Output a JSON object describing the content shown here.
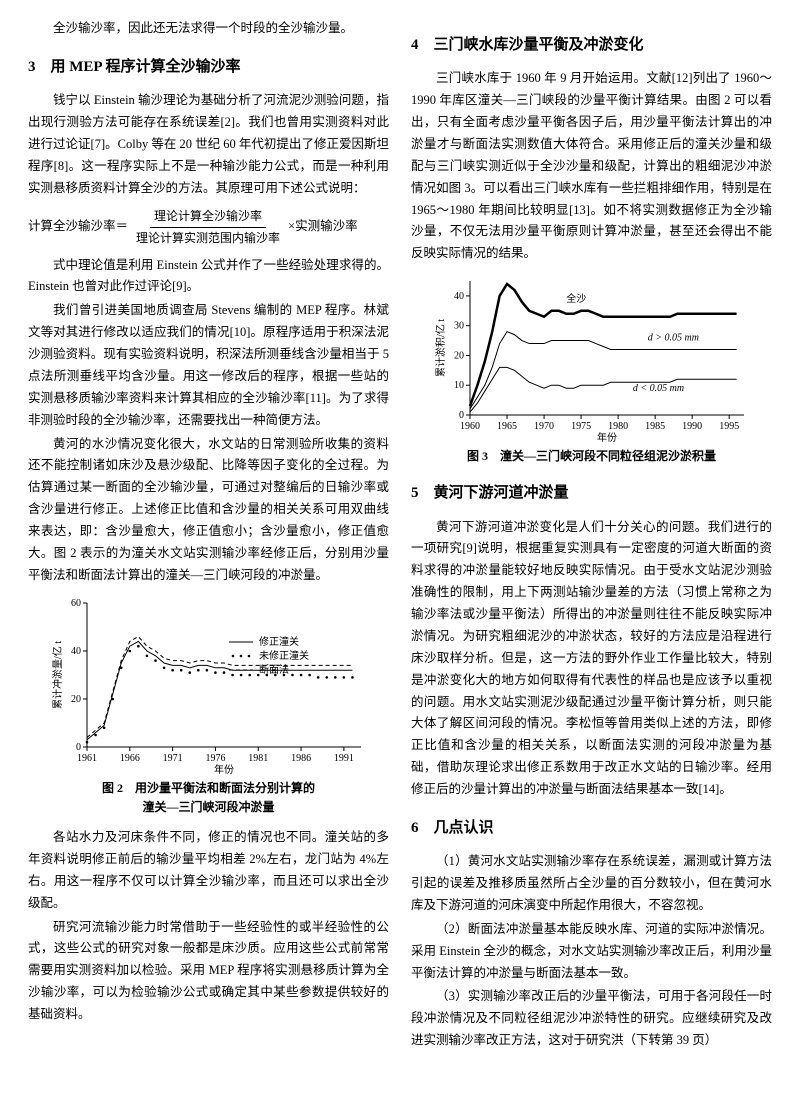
{
  "leftCol": {
    "intro": "全沙输沙率，因此还无法求得一个时段的全沙输沙量。",
    "h3": "3　用 MEP 程序计算全沙输沙率",
    "p1": "钱宁以 Einstein 输沙理论为基础分析了河流泥沙测验问题，指出现行测验方法可能存在系统误差[2]。我们也曾用实测资料对此进行过论证[7]。Colby 等在 20 世纪 60 年代初提出了修正爱因斯坦程序[8]。这一程序实际上不是一种输沙能力公式，而是一种利用实测悬移质资料计算全沙的方法。其原理可用下述公式说明：",
    "formula_label": "计算全沙输沙率＝",
    "formula_num": "理论计算全沙输沙率",
    "formula_den": "理论计算实测范围内输沙率",
    "formula_tail": "×实测输沙率",
    "p2": "式中理论值是利用 Einstein 公式并作了一些经验处理求得的。Einstein 也曾对此作过评论[9]。",
    "p3": "我们曾引进美国地质调查局 Stevens 编制的 MEP 程序。林斌文等对其进行修改以适应我们的情况[10]。原程序适用于积深法泥沙测验资料。现有实验资料说明，积深法所测垂线含沙量相当于 5 点法所测垂线平均含沙量。用这一修改后的程序，根据一些站的实测悬移质输沙率资料来计算其相应的全沙输沙率[11]。为了求得非测验时段的全沙输沙率，还需要找出一种简便方法。",
    "p4": "黄河的水沙情况变化很大，水文站的日常测验所收集的资料还不能控制诸如床沙及悬沙级配、比降等因子变化的全过程。为估算通过某一断面的全沙输沙量，可通过对整编后的日输沙率或含沙量进行修正。上述修正比值和含沙量的相关关系可用双曲线来表达，即：含沙量愈大，修正值愈小；含沙量愈小，修正值愈大。图 2 表示的为潼关水文站实测输沙率经修正后，分别用沙量平衡法和断面法计算出的潼关—三门峡河段的冲淤量。",
    "fig2_caption1": "图 2　用沙量平衡法和断面法分别计算的",
    "fig2_caption2": "潼关—三门峡河段冲淤量",
    "p5": "各站水力及河床条件不同，修正的情况也不同。潼关站的多年资料说明修正前后的输沙量平均相差 2%左右，龙门站为 4%左右。用这一程序不仅可以计算全沙输沙率，而且还可以求出全沙级配。",
    "p6": "研究河流输沙能力时常借助于一些经验性的或半经验性的公式，这些公式的研究对象一般都是床沙质。应用这些公式前常常需要用实测资料加以检验。采用 MEP 程序将实测悬移质计算为全沙输沙率，可以为检验输沙公式或确定其中某些参数提供较好的基础资料。",
    "fig2": {
      "type": "line",
      "xlabel": "年份",
      "ylabel": "累计冲淤量/亿 t",
      "xlim": [
        1961,
        1993
      ],
      "ylim": [
        0,
        60
      ],
      "xticks": [
        1961,
        1966,
        1971,
        1976,
        1981,
        1986,
        1991
      ],
      "yticks": [
        0,
        20,
        40,
        60
      ],
      "background_color": "#ffffff",
      "axis_color": "#000000",
      "series": [
        {
          "name": "修正潼关",
          "color": "#000000",
          "style": "solid",
          "width": 1,
          "points": [
            [
              1961,
              3
            ],
            [
              1962,
              6
            ],
            [
              1963,
              9
            ],
            [
              1964,
              22
            ],
            [
              1965,
              35
            ],
            [
              1966,
              42
            ],
            [
              1967,
              44
            ],
            [
              1968,
              40
            ],
            [
              1969,
              38
            ],
            [
              1970,
              35
            ],
            [
              1971,
              34
            ],
            [
              1972,
              34
            ],
            [
              1973,
              33
            ],
            [
              1974,
              34
            ],
            [
              1975,
              34
            ],
            [
              1976,
              33
            ],
            [
              1977,
              33
            ],
            [
              1978,
              32
            ],
            [
              1979,
              32
            ],
            [
              1980,
              32
            ],
            [
              1981,
              32
            ],
            [
              1982,
              32
            ],
            [
              1983,
              32
            ],
            [
              1984,
              32
            ],
            [
              1985,
              32
            ],
            [
              1986,
              32
            ],
            [
              1987,
              32
            ],
            [
              1988,
              32
            ],
            [
              1989,
              32
            ],
            [
              1990,
              32
            ],
            [
              1991,
              32
            ],
            [
              1992,
              32
            ]
          ]
        },
        {
          "name": "未修正潼关",
          "color": "#000000",
          "style": "dots",
          "width": 0,
          "points": [
            [
              1961,
              2
            ],
            [
              1962,
              5
            ],
            [
              1963,
              8
            ],
            [
              1964,
              20
            ],
            [
              1965,
              33
            ],
            [
              1966,
              40
            ],
            [
              1967,
              42
            ],
            [
              1968,
              38
            ],
            [
              1969,
              36
            ],
            [
              1970,
              33
            ],
            [
              1971,
              32
            ],
            [
              1972,
              32
            ],
            [
              1973,
              31
            ],
            [
              1974,
              32
            ],
            [
              1975,
              32
            ],
            [
              1976,
              31
            ],
            [
              1977,
              31
            ],
            [
              1978,
              30
            ],
            [
              1979,
              30
            ],
            [
              1980,
              30
            ],
            [
              1981,
              30
            ],
            [
              1982,
              30
            ],
            [
              1983,
              30
            ],
            [
              1984,
              30
            ],
            [
              1985,
              30
            ],
            [
              1986,
              30
            ],
            [
              1987,
              30
            ],
            [
              1988,
              29
            ],
            [
              1989,
              29
            ],
            [
              1990,
              29
            ],
            [
              1991,
              29
            ],
            [
              1992,
              29
            ]
          ]
        },
        {
          "name": "断面法",
          "color": "#000000",
          "style": "dash",
          "width": 1,
          "points": [
            [
              1961,
              4
            ],
            [
              1962,
              7
            ],
            [
              1963,
              10
            ],
            [
              1964,
              23
            ],
            [
              1965,
              36
            ],
            [
              1966,
              44
            ],
            [
              1967,
              46
            ],
            [
              1968,
              42
            ],
            [
              1969,
              40
            ],
            [
              1970,
              37
            ],
            [
              1971,
              36
            ],
            [
              1972,
              36
            ],
            [
              1973,
              35
            ],
            [
              1974,
              36
            ],
            [
              1975,
              36
            ],
            [
              1976,
              35
            ],
            [
              1977,
              35
            ],
            [
              1978,
              34
            ],
            [
              1979,
              34
            ],
            [
              1980,
              34
            ],
            [
              1981,
              34
            ],
            [
              1982,
              34
            ],
            [
              1983,
              34
            ],
            [
              1984,
              34
            ],
            [
              1985,
              34
            ],
            [
              1986,
              34
            ],
            [
              1987,
              34
            ],
            [
              1988,
              34
            ],
            [
              1989,
              34
            ],
            [
              1990,
              34
            ],
            [
              1991,
              34
            ],
            [
              1992,
              34
            ]
          ]
        }
      ],
      "legend_pos": "right"
    }
  },
  "rightCol": {
    "h4": "4　三门峡水库沙量平衡及冲淤变化",
    "p1": "三门峡水库于 1960 年 9 月开始运用。文献[12]列出了 1960～1990 年库区潼关—三门峡段的沙量平衡计算结果。由图 2 可以看出，只有全面考虑沙量平衡各因子后，用沙量平衡法计算出的冲淤量才与断面法实测数值大体符合。采用修正后的潼关沙量和级配与三门峡实测近似于全沙沙量和级配，计算出的粗细泥沙冲淤情况如图 3。可以看出三门峡水库有一些拦粗排细作用，特别是在 1965～1980 年期间比较明显[13]。如不将实测数据修正为全沙输沙量，不仅无法用沙量平衡原则计算冲淤量，甚至还会得出不能反映实际情况的结果。",
    "fig3_caption": "图 3　潼关—三门峡河段不同粒径组泥沙淤积量",
    "fig3": {
      "type": "line",
      "xlabel": "年份",
      "ylabel": "累计淤积/亿 t",
      "xlim": [
        1960,
        1997
      ],
      "ylim": [
        0,
        45
      ],
      "xticks": [
        1960,
        1965,
        1970,
        1975,
        1980,
        1985,
        1990,
        1995
      ],
      "yticks": [
        0,
        10,
        20,
        30,
        40
      ],
      "background_color": "#ffffff",
      "axis_color": "#000000",
      "series": [
        {
          "name": "全沙",
          "color": "#000000",
          "style": "solid",
          "width": 2.5,
          "points": [
            [
              1960,
              3
            ],
            [
              1961,
              10
            ],
            [
              1962,
              18
            ],
            [
              1963,
              28
            ],
            [
              1964,
              40
            ],
            [
              1965,
              44
            ],
            [
              1966,
              42
            ],
            [
              1967,
              38
            ],
            [
              1968,
              35
            ],
            [
              1969,
              34
            ],
            [
              1970,
              33
            ],
            [
              1971,
              35
            ],
            [
              1972,
              35
            ],
            [
              1973,
              34
            ],
            [
              1974,
              34
            ],
            [
              1975,
              35
            ],
            [
              1976,
              35
            ],
            [
              1977,
              34
            ],
            [
              1978,
              33
            ],
            [
              1979,
              33
            ],
            [
              1980,
              33
            ],
            [
              1981,
              33
            ],
            [
              1982,
              33
            ],
            [
              1983,
              33
            ],
            [
              1984,
              33
            ],
            [
              1985,
              33
            ],
            [
              1986,
              33
            ],
            [
              1987,
              33
            ],
            [
              1988,
              34
            ],
            [
              1989,
              34
            ],
            [
              1990,
              34
            ],
            [
              1991,
              34
            ],
            [
              1992,
              34
            ],
            [
              1993,
              34
            ],
            [
              1994,
              34
            ],
            [
              1995,
              34
            ],
            [
              1996,
              34
            ]
          ]
        },
        {
          "name": "d > 0.05 mm",
          "color": "#000000",
          "style": "solid",
          "width": 1,
          "points": [
            [
              1960,
              2
            ],
            [
              1961,
              6
            ],
            [
              1962,
              10
            ],
            [
              1963,
              16
            ],
            [
              1964,
              24
            ],
            [
              1965,
              28
            ],
            [
              1966,
              27
            ],
            [
              1967,
              25
            ],
            [
              1968,
              24
            ],
            [
              1969,
              24
            ],
            [
              1970,
              24
            ],
            [
              1971,
              25
            ],
            [
              1972,
              25
            ],
            [
              1973,
              25
            ],
            [
              1974,
              25
            ],
            [
              1975,
              25
            ],
            [
              1976,
              25
            ],
            [
              1977,
              24
            ],
            [
              1978,
              23
            ],
            [
              1979,
              22
            ],
            [
              1980,
              22
            ],
            [
              1981,
              22
            ],
            [
              1982,
              22
            ],
            [
              1983,
              22
            ],
            [
              1984,
              22
            ],
            [
              1985,
              22
            ],
            [
              1986,
              22
            ],
            [
              1987,
              22
            ],
            [
              1988,
              22
            ],
            [
              1989,
              22
            ],
            [
              1990,
              22
            ],
            [
              1991,
              22
            ],
            [
              1992,
              22
            ],
            [
              1993,
              22
            ],
            [
              1994,
              22
            ],
            [
              1995,
              22
            ],
            [
              1996,
              22
            ]
          ]
        },
        {
          "name": "d < 0.05 mm",
          "color": "#000000",
          "style": "solid",
          "width": 1,
          "points": [
            [
              1960,
              1
            ],
            [
              1961,
              4
            ],
            [
              1962,
              8
            ],
            [
              1963,
              12
            ],
            [
              1964,
              16
            ],
            [
              1965,
              16
            ],
            [
              1966,
              15
            ],
            [
              1967,
              13
            ],
            [
              1968,
              11
            ],
            [
              1969,
              10
            ],
            [
              1970,
              9
            ],
            [
              1971,
              10
            ],
            [
              1972,
              10
            ],
            [
              1973,
              9
            ],
            [
              1974,
              9
            ],
            [
              1975,
              10
            ],
            [
              1976,
              10
            ],
            [
              1977,
              10
            ],
            [
              1978,
              10
            ],
            [
              1979,
              11
            ],
            [
              1980,
              11
            ],
            [
              1981,
              11
            ],
            [
              1982,
              11
            ],
            [
              1983,
              11
            ],
            [
              1984,
              11
            ],
            [
              1985,
              11
            ],
            [
              1986,
              11
            ],
            [
              1987,
              11
            ],
            [
              1988,
              12
            ],
            [
              1989,
              12
            ],
            [
              1990,
              12
            ],
            [
              1991,
              12
            ],
            [
              1992,
              12
            ],
            [
              1993,
              12
            ],
            [
              1994,
              12
            ],
            [
              1995,
              12
            ],
            [
              1996,
              12
            ]
          ]
        }
      ]
    },
    "h5": "5　黄河下游河道冲淤量",
    "p2": "黄河下游河道冲淤变化是人们十分关心的问题。我们进行的一项研究[9]说明，根据重复实测具有一定密度的河道大断面的资料求得的冲淤量能较好地反映实际情况。由于受水文站泥沙测验准确性的限制，用上下两测站输沙量差的方法（习惯上常称之为输沙率法或沙量平衡法）所得出的冲淤量则往往不能反映实际冲淤情况。为研究粗细泥沙的冲淤状态，较好的方法应是沿程进行床沙取样分析。但是，这一方法的野外作业工作量比较大，特别是冲淤变化大的地方如何取得有代表性的样品也是应该予以重视的问题。用水文站实测泥沙级配通过沙量平衡计算分析，则只能大体了解区间河段的情况。李松恒等曾用类似上述的方法，即修正比值和含沙量的相关关系，以断面法实测的河段冲淤量为基础，借助灰理论求出修正系数用于改正水文站的日输沙率。经用修正后的沙量计算出的冲淤量与断面法结果基本一致[14]。",
    "h6": "6　几点认识",
    "p3": "（1）黄河水文站实测输沙率存在系统误差，漏测或计算方法引起的误差及推移质虽然所占全沙量的百分数较小，但在黄河水库及下游河道的河床演变中所起作用很大，不容忽视。",
    "p4": "（2）断面法冲淤量基本能反映水库、河道的实际冲淤情况。采用 Einstein 全沙的概念，对水文站实测输沙率改正后，利用沙量平衡法计算的冲淤量与断面法基本一致。",
    "p5": "（3）实测输沙率改正后的沙量平衡法，可用于各河段任一时段冲淤情况及不同粒径组泥沙冲淤特性的研究。应继续研究及改进实测输沙率改正方法，这对于研究洪（下转第 39 页）"
  }
}
